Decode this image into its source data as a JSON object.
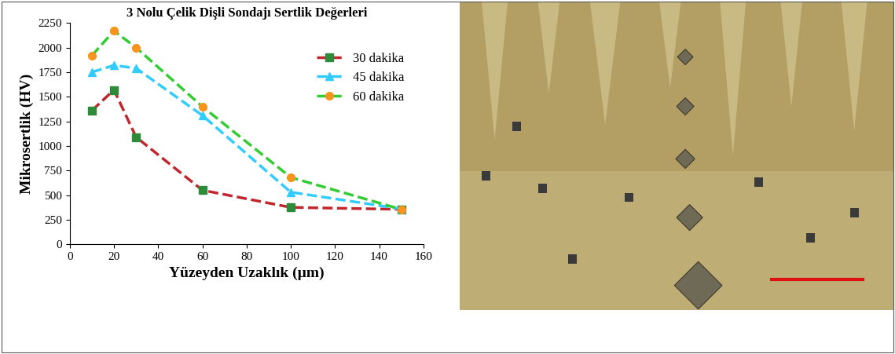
{
  "chart_data": {
    "type": "line",
    "title": "3 Nolu Çelik Dişli Sondajı Sertlik Değerleri",
    "x_label": "Yüzeyden Uzaklık (µm)",
    "y_label": "Mikrosertlik (HV)",
    "x": [
      10,
      20,
      30,
      60,
      100,
      150
    ],
    "series": [
      {
        "name": "30 dakika",
        "color": "#c0272d",
        "marker": "square",
        "line_style": "dashed",
        "values": [
          1360,
          1570,
          1090,
          550,
          375,
          355
        ]
      },
      {
        "name": "45 dakika",
        "color": "#33ccff",
        "marker": "triangle",
        "line_style": "dashed",
        "values": [
          1750,
          1820,
          1790,
          1310,
          530,
          360
        ]
      },
      {
        "name": "60 dakika",
        "color": "#33cc33",
        "marker": "circle",
        "line_style": "dashed",
        "values": [
          1920,
          2170,
          2000,
          1400,
          680,
          355
        ]
      }
    ],
    "xlim": [
      0,
      160
    ],
    "xticks": [
      0,
      20,
      40,
      60,
      80,
      100,
      120,
      140,
      160
    ],
    "ylim": [
      0,
      2250
    ],
    "yticks": [
      0,
      250,
      500,
      750,
      1000,
      1250,
      1500,
      1750,
      2000,
      2250
    ],
    "grid": false,
    "legend": "upper right"
  }
}
